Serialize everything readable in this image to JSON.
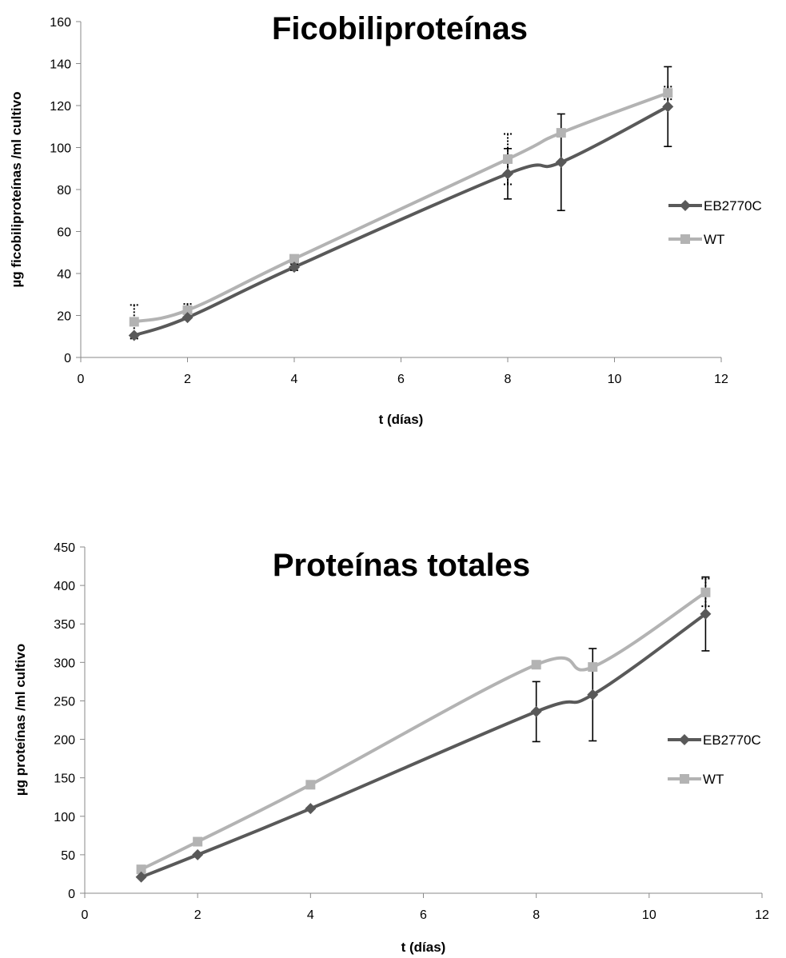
{
  "colors": {
    "EB2770C": "#595959",
    "WT": "#b3b3b3",
    "axis": "#8a8a8a"
  },
  "chart_data": [
    {
      "type": "line",
      "title": "Ficobiliproteínas",
      "xlabel": "t (días)",
      "ylabel": "µg ficobiliproteínas /ml cultivo",
      "xlim": [
        0,
        12
      ],
      "ylim": [
        0,
        160
      ],
      "xticks": [
        0,
        2,
        4,
        6,
        8,
        10,
        12
      ],
      "yticks": [
        0,
        20,
        40,
        60,
        80,
        100,
        120,
        140,
        160
      ],
      "grid": false,
      "legend": "right",
      "series": [
        {
          "name": "EB2770C",
          "marker": "diamond",
          "x": [
            1,
            2,
            4,
            8,
            9,
            11
          ],
          "y": [
            10.5,
            19,
            43,
            87.5,
            93,
            119.5
          ],
          "err": [
            0,
            0,
            1.5,
            12,
            23,
            19
          ],
          "err_style": "solid"
        },
        {
          "name": "WT",
          "marker": "square",
          "x": [
            1,
            2,
            4,
            8,
            9,
            11
          ],
          "y": [
            17,
            22.5,
            47,
            94.5,
            107,
            126
          ],
          "err": [
            8,
            3,
            0,
            12,
            0,
            3
          ],
          "err_style": "dotted"
        }
      ]
    },
    {
      "type": "line",
      "title": "Proteínas totales",
      "xlabel": "t (días)",
      "ylabel": "µg proteínas /ml cultivo",
      "xlim": [
        0,
        12
      ],
      "ylim": [
        0,
        450
      ],
      "xticks": [
        0,
        2,
        4,
        6,
        8,
        10,
        12
      ],
      "yticks": [
        0,
        50,
        100,
        150,
        200,
        250,
        300,
        350,
        400,
        450
      ],
      "grid": false,
      "legend": "right",
      "series": [
        {
          "name": "EB2770C",
          "marker": "diamond",
          "x": [
            1,
            2,
            4,
            8,
            9,
            11
          ],
          "y": [
            21,
            50,
            110,
            236,
            258,
            363
          ],
          "err": [
            0,
            0,
            0,
            39,
            60,
            48
          ],
          "err_style": "solid"
        },
        {
          "name": "WT",
          "marker": "square",
          "x": [
            1,
            2,
            4,
            8,
            9,
            11
          ],
          "y": [
            31,
            67,
            141,
            297,
            294,
            391
          ],
          "err": [
            0,
            0,
            0,
            0,
            0,
            18
          ],
          "err_style": "dotted"
        }
      ]
    }
  ]
}
